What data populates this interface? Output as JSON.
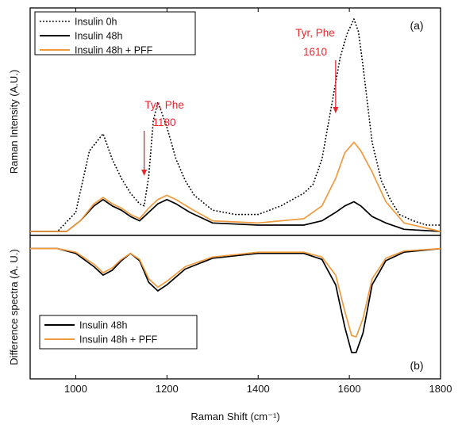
{
  "chart_data": [
    {
      "panel": "(a)",
      "type": "line",
      "ylabel": "Raman Intensity (A.U.)",
      "xlim": [
        900,
        1800
      ],
      "ylim": [
        0,
        100
      ],
      "series": [
        {
          "name": "Insulin 0h",
          "color": "#000000",
          "style": "dotted",
          "x": [
            900,
            960,
            1000,
            1030,
            1060,
            1080,
            1100,
            1120,
            1140,
            1150,
            1160,
            1170,
            1180,
            1190,
            1200,
            1220,
            1240,
            1260,
            1300,
            1350,
            1400,
            1450,
            1500,
            1520,
            1540,
            1560,
            1580,
            1595,
            1610,
            1620,
            1630,
            1650,
            1670,
            1690,
            1710,
            1740,
            1770,
            1800
          ],
          "y": [
            0,
            0,
            9,
            38,
            46,
            34,
            25,
            18,
            13,
            12,
            26,
            52,
            61,
            55,
            49,
            34,
            24,
            17,
            10,
            8,
            8,
            12,
            18,
            22,
            34,
            58,
            82,
            93,
            100,
            94,
            78,
            42,
            24,
            15,
            8,
            5,
            3,
            3
          ]
        },
        {
          "name": "Insulin 48h",
          "color": "#000000",
          "style": "solid",
          "x": [
            900,
            980,
            1010,
            1040,
            1060,
            1080,
            1100,
            1120,
            1140,
            1160,
            1180,
            1200,
            1220,
            1250,
            1300,
            1400,
            1500,
            1540,
            1570,
            1590,
            1610,
            1625,
            1650,
            1680,
            1720,
            1800
          ],
          "y": [
            0,
            0,
            5,
            12,
            15,
            12,
            10,
            7,
            5,
            9,
            13,
            15,
            13,
            9,
            4,
            3,
            3,
            5,
            9,
            12,
            14,
            12,
            7,
            4,
            1,
            0
          ]
        },
        {
          "name": "Insulin 48h + PFF",
          "color": "#f09a3e",
          "style": "solid",
          "x": [
            900,
            980,
            1010,
            1040,
            1060,
            1080,
            1100,
            1120,
            1140,
            1160,
            1180,
            1200,
            1220,
            1250,
            1300,
            1400,
            1500,
            1540,
            1570,
            1590,
            1610,
            1625,
            1650,
            1680,
            1720,
            1800
          ],
          "y": [
            0,
            0,
            5,
            13,
            16,
            13,
            11,
            8,
            6,
            11,
            15,
            17,
            15,
            11,
            5,
            4,
            6,
            12,
            25,
            37,
            42,
            38,
            28,
            14,
            4,
            0
          ]
        }
      ],
      "legend": [
        "Insulin 0h",
        "Insulin 48h",
        "Insulin 48h + PFF"
      ],
      "annotations": [
        {
          "label": "Tyr, Phe",
          "value": "1180",
          "x": 1150
        },
        {
          "label": "Tyr, Phe",
          "value": "1610",
          "x": 1570
        }
      ]
    },
    {
      "panel": "(b)",
      "type": "line",
      "xlabel": "Raman Shift (cm⁻¹)",
      "ylabel": "Difference spectra (A. U.)",
      "xlim": [
        900,
        1800
      ],
      "ylim": [
        -100,
        5
      ],
      "xticks": [
        1000,
        1200,
        1400,
        1600,
        1800
      ],
      "series": [
        {
          "name": "Insulin 48h",
          "color": "#000000",
          "style": "solid",
          "x": [
            900,
            960,
            1000,
            1040,
            1060,
            1080,
            1100,
            1120,
            1140,
            1160,
            1180,
            1200,
            1240,
            1300,
            1400,
            1500,
            1540,
            1570,
            1590,
            1605,
            1615,
            1630,
            1650,
            1680,
            1720,
            1800
          ],
          "y": [
            0,
            0,
            -4,
            -15,
            -22,
            -18,
            -10,
            -4,
            -10,
            -28,
            -35,
            -30,
            -17,
            -8,
            -4,
            -4,
            -9,
            -30,
            -65,
            -86,
            -86,
            -70,
            -30,
            -10,
            -3,
            0
          ]
        },
        {
          "name": "Insulin 48h + PFF",
          "color": "#f09a3e",
          "style": "solid",
          "x": [
            900,
            960,
            1000,
            1040,
            1060,
            1080,
            1100,
            1120,
            1140,
            1160,
            1180,
            1200,
            1240,
            1300,
            1400,
            1500,
            1540,
            1570,
            1590,
            1605,
            1615,
            1630,
            1650,
            1680,
            1720,
            1800
          ],
          "y": [
            0,
            0,
            -3,
            -13,
            -20,
            -16,
            -9,
            -4,
            -9,
            -25,
            -32,
            -27,
            -15,
            -7,
            -3,
            -3,
            -7,
            -22,
            -52,
            -72,
            -73,
            -58,
            -25,
            -8,
            -2,
            0
          ]
        }
      ],
      "legend": [
        "Insulin 48h",
        "Insulin 48h + PFF"
      ]
    }
  ]
}
